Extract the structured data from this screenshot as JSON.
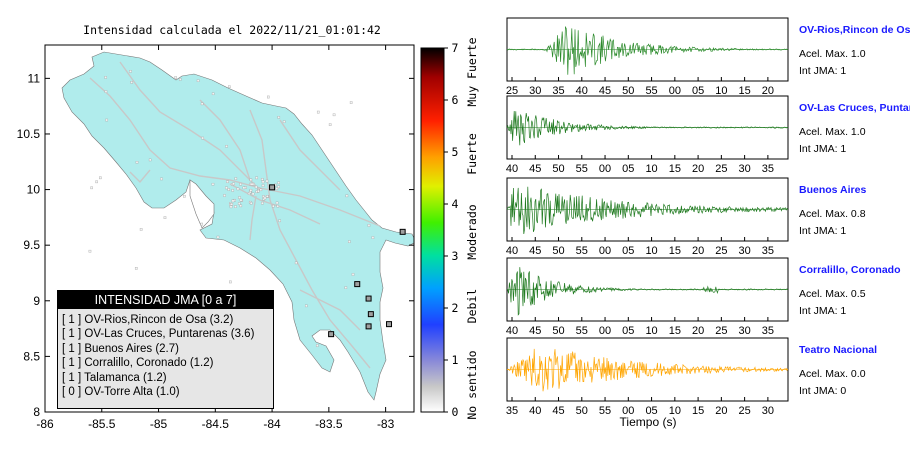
{
  "title": "Intensidad calculada el 2022/11/21_01:01:42",
  "colorbar": {
    "ticks": [
      "0",
      "1",
      "2",
      "3",
      "4",
      "5",
      "6",
      "7"
    ],
    "labels": [
      "No sentido",
      "Debil",
      "Moderado",
      "Fuerte",
      "Muy Fuerte"
    ]
  },
  "map": {
    "x_ticks": [
      "-86",
      "-85.5",
      "-85",
      "-84.5",
      "-84",
      "-83.5",
      "-83"
    ],
    "y_ticks": [
      "8",
      "8.5",
      "9",
      "9.5",
      "10",
      "10.5",
      "11"
    ],
    "xlim": [
      -86,
      -82.75
    ],
    "ylim": [
      8,
      11.3
    ],
    "land_color": "#b0ecec",
    "stations": [
      {
        "lon": -84.0,
        "lat": 10.02
      },
      {
        "lon": -82.85,
        "lat": 9.62
      },
      {
        "lon": -83.25,
        "lat": 9.15
      },
      {
        "lon": -83.15,
        "lat": 9.02
      },
      {
        "lon": -83.13,
        "lat": 8.88
      },
      {
        "lon": -83.15,
        "lat": 8.77
      },
      {
        "lon": -82.97,
        "lat": 8.79
      },
      {
        "lon": -83.48,
        "lat": 8.7
      }
    ]
  },
  "legend": {
    "header": "INTENSIDAD JMA [0 a 7]",
    "rows": [
      "[ 1 ]  OV-Rios,Rincon de Osa (3.2)",
      "[ 1 ]  OV-Las Cruces, Puntarenas (3.6)",
      "[ 1 ]  Buenos Aires (2.7)",
      "[ 1 ]  Corralillo, Coronado (1.2)",
      "[ 1 ]  Talamanca (1.2)",
      "[ 0 ]  OV-Torre Alta (1.0)"
    ]
  },
  "chart_data": [
    {
      "type": "line",
      "title": "OV-Rios,Rincon de Osa",
      "accel_label": "Acel. Max. 1.0",
      "jma_label": "Int JMA: 1",
      "color": "#2a8a2a",
      "x_ticks": [
        "25",
        "30",
        "35",
        "40",
        "45",
        "50",
        "55",
        "00",
        "05",
        "10",
        "15",
        "20"
      ],
      "envelope": {
        "onset": 0.13,
        "peak": 0.22,
        "decay": 0.18,
        "amp": 0.95
      }
    },
    {
      "type": "line",
      "title": "OV-Las Cruces, Puntarenas",
      "accel_label": "Acel. Max. 1.0",
      "jma_label": "Int JMA: 1",
      "color": "#1f7a1f",
      "x_ticks": [
        "40",
        "45",
        "50",
        "55",
        "00",
        "05",
        "10",
        "15",
        "20",
        "25",
        "30",
        "35"
      ],
      "envelope": {
        "onset": 0.0,
        "peak": 0.03,
        "decay": 0.15,
        "amp": 0.7
      }
    },
    {
      "type": "line",
      "title": "Buenos Aires",
      "accel_label": "Acel. Max. 0.8",
      "jma_label": "Int JMA: 1",
      "color": "#1f7a1f",
      "x_ticks": [
        "40",
        "45",
        "50",
        "55",
        "00",
        "05",
        "10",
        "15",
        "20",
        "25",
        "30",
        "35"
      ],
      "envelope": {
        "onset": 0.0,
        "peak": 0.02,
        "decay": 0.35,
        "amp": 0.95
      }
    },
    {
      "type": "line",
      "title": "Corralillo, Coronado",
      "accel_label": "Acel. Max. 0.5",
      "jma_label": "Int JMA: 1",
      "color": "#1f7a1f",
      "x_ticks": [
        "40",
        "45",
        "50",
        "55",
        "00",
        "05",
        "10",
        "15",
        "20",
        "25",
        "30",
        "35"
      ],
      "envelope": {
        "onset": 0.0,
        "peak": 0.03,
        "decay": 0.12,
        "amp": 0.95
      }
    },
    {
      "type": "line",
      "title": "Teatro Nacional",
      "accel_label": "Acel. Max. 0.0",
      "jma_label": "Int JMA: 0",
      "color": "#ffa500",
      "x_ticks": [
        "35",
        "40",
        "45",
        "50",
        "55",
        "00",
        "05",
        "10",
        "15",
        "20",
        "25",
        "30"
      ],
      "envelope": {
        "onset": 0.0,
        "peak": 0.12,
        "decay": 0.3,
        "amp": 0.9
      },
      "xlabel": "Tiempo (s)"
    }
  ]
}
